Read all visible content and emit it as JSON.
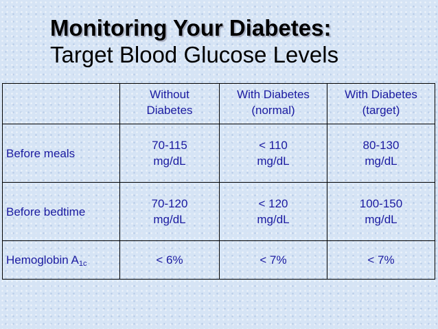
{
  "slide": {
    "title": "Monitoring Your Diabetes:",
    "subtitle": "Target Blood Glucose Levels"
  },
  "table": {
    "headers": [
      "",
      [
        "Without",
        "Diabetes"
      ],
      [
        "With Diabetes",
        "(normal)"
      ],
      [
        "With Diabetes",
        "(target)"
      ]
    ],
    "rows": [
      {
        "label": "Before meals",
        "cells": [
          [
            "70-115",
            "mg/dL"
          ],
          [
            "< 110",
            "mg/dL"
          ],
          [
            "80-130",
            "mg/dL"
          ]
        ]
      },
      {
        "label": "Before bedtime",
        "cells": [
          [
            "70-120",
            "mg/dL"
          ],
          [
            "< 120",
            "mg/dL"
          ],
          [
            "100-150",
            "mg/dL"
          ]
        ]
      },
      {
        "label_main": "Hemoglobin A",
        "label_sub": "1c",
        "cells": [
          [
            "< 6%"
          ],
          [
            "< 7%"
          ],
          [
            "< 7%"
          ]
        ]
      }
    ]
  },
  "colors": {
    "background": "#d6e4f5",
    "table_text": "#1a1aa0",
    "title_text": "#000000"
  }
}
